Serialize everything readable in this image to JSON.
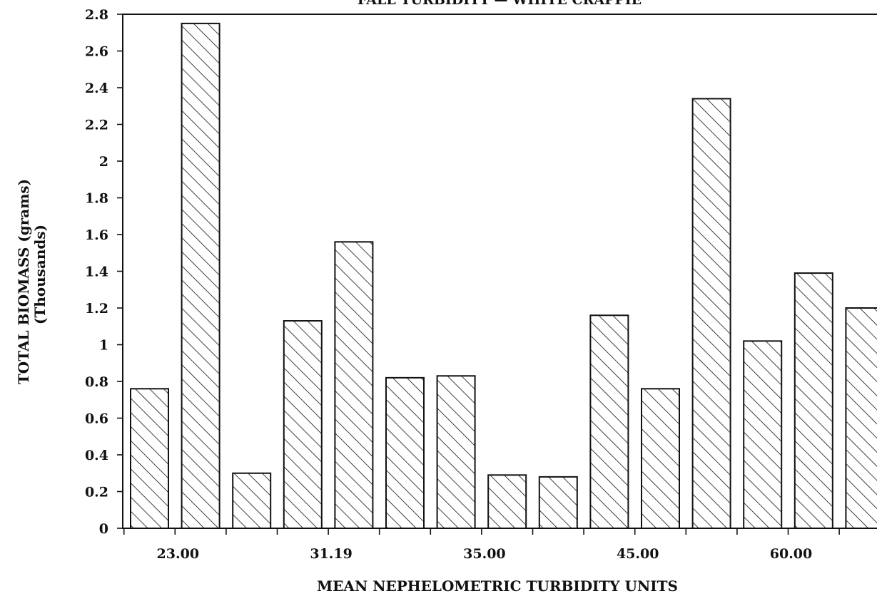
{
  "chart_data": {
    "type": "bar",
    "title": "FALL TURBIDITY — WHITE CRAPPIE",
    "xlabel": "MEAN NEPHELOMETRIC TURBIDITY UNITS",
    "ylabel_line1": "TOTAL BIOMASS (grams)",
    "ylabel_line2": "(Thousands)",
    "ylim": [
      0,
      2.8
    ],
    "yticks": [
      0,
      0.2,
      0.4,
      0.6,
      0.8,
      1,
      1.2,
      1.4,
      1.6,
      1.8,
      2,
      2.2,
      2.4,
      2.6,
      2.8
    ],
    "ytick_labels": [
      "0",
      "0.2",
      "0.4",
      "0.6",
      "0.8",
      "1",
      "1.2",
      "1.4",
      "1.6",
      "1.8",
      "2",
      "2.2",
      "2.4",
      "2.6",
      "2.8"
    ],
    "xtick_labels": [
      "23.00",
      "31.19",
      "35.00",
      "45.00",
      "60.00"
    ],
    "xtick_label_bar_index": [
      0.5,
      3.5,
      6.5,
      9.5,
      12.5
    ],
    "values": [
      0.76,
      2.75,
      0.3,
      1.13,
      1.56,
      0.82,
      0.83,
      0.29,
      0.28,
      1.16,
      0.76,
      2.34,
      1.02,
      1.39,
      1.2
    ],
    "grid": false,
    "legend": "none",
    "bar_fill": "diagonal-hatch",
    "colors": {
      "stroke": "#111111",
      "background": "#ffffff"
    }
  }
}
